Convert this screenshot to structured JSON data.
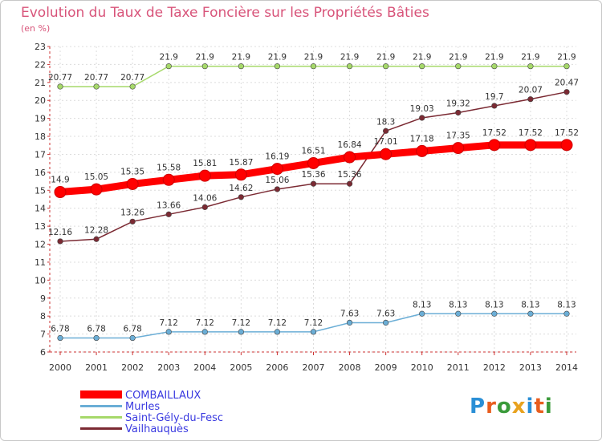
{
  "title": "Evolution du Taux de Taxe Foncière sur les Propriétés Bâties",
  "subtitle": "(en %)",
  "logo_text": "Proxiti",
  "chart_data": {
    "type": "line",
    "title": "Evolution du Taux de Taxe Foncière sur les Propriétés Bâties",
    "ylabel": "(en %)",
    "xlabel": "",
    "ylim": [
      6,
      23
    ],
    "grid": true,
    "yticks": [
      "6",
      "7",
      "8",
      "9",
      "10",
      "11",
      "12",
      "13",
      "14",
      "15",
      "16",
      "17",
      "18",
      "19",
      "20",
      "21",
      "22",
      "23"
    ],
    "categories": [
      "2000",
      "2001",
      "2002",
      "2003",
      "2004",
      "2005",
      "2006",
      "2007",
      "2008",
      "2009",
      "2010",
      "2011",
      "2012",
      "2013",
      "2014"
    ],
    "series": [
      {
        "name": "COMBAILLAUX",
        "color": "#ff0000",
        "emphasis": true,
        "values": [
          14.9,
          15.05,
          15.35,
          15.58,
          15.81,
          15.87,
          16.19,
          16.51,
          16.84,
          17.01,
          17.18,
          17.35,
          17.52,
          17.52,
          17.52
        ],
        "labels": [
          "14.9",
          "15.05",
          "15.35",
          "15.58",
          "15.81",
          "15.87",
          "16.19",
          "16.51",
          "16.84",
          "17.01",
          "17.18",
          "17.35",
          "17.52",
          "17.52",
          "17.52"
        ]
      },
      {
        "name": "Murles",
        "color": "#6baed6",
        "emphasis": false,
        "values": [
          6.78,
          6.78,
          6.78,
          7.12,
          7.12,
          7.12,
          7.12,
          7.12,
          7.63,
          7.63,
          8.13,
          8.13,
          8.13,
          8.13,
          8.13
        ],
        "labels": [
          "6.78",
          "6.78",
          "6.78",
          "7.12",
          "7.12",
          "7.12",
          "7.12",
          "7.12",
          "7.63",
          "7.63",
          "8.13",
          "8.13",
          "8.13",
          "8.13",
          "8.13"
        ]
      },
      {
        "name": "Saint-Gély-du-Fesc",
        "color": "#a6d96a",
        "emphasis": false,
        "values": [
          20.77,
          20.77,
          20.77,
          21.9,
          21.9,
          21.9,
          21.9,
          21.9,
          21.9,
          21.9,
          21.9,
          21.9,
          21.9,
          21.9,
          21.9
        ],
        "labels": [
          "20.77",
          "20.77",
          "20.77",
          "21.9",
          "21.9",
          "21.9",
          "21.9",
          "21.9",
          "21.9",
          "21.9",
          "21.9",
          "21.9",
          "21.9",
          "21.9",
          "21.9"
        ]
      },
      {
        "name": "Vailhauquès",
        "color": "#7b2a33",
        "emphasis": false,
        "values": [
          12.16,
          12.28,
          13.26,
          13.66,
          14.06,
          14.62,
          15.06,
          15.36,
          15.36,
          18.3,
          19.03,
          19.32,
          19.7,
          20.07,
          20.47
        ],
        "labels": [
          "12.16",
          "12.28",
          "13.26",
          "13.66",
          "14.06",
          "14.62",
          "15.06",
          "15.36",
          "15.36",
          "18.3",
          "19.03",
          "19.32",
          "19.7",
          "20.07",
          "20.47"
        ]
      }
    ],
    "legend_placement": "bottom-left"
  }
}
